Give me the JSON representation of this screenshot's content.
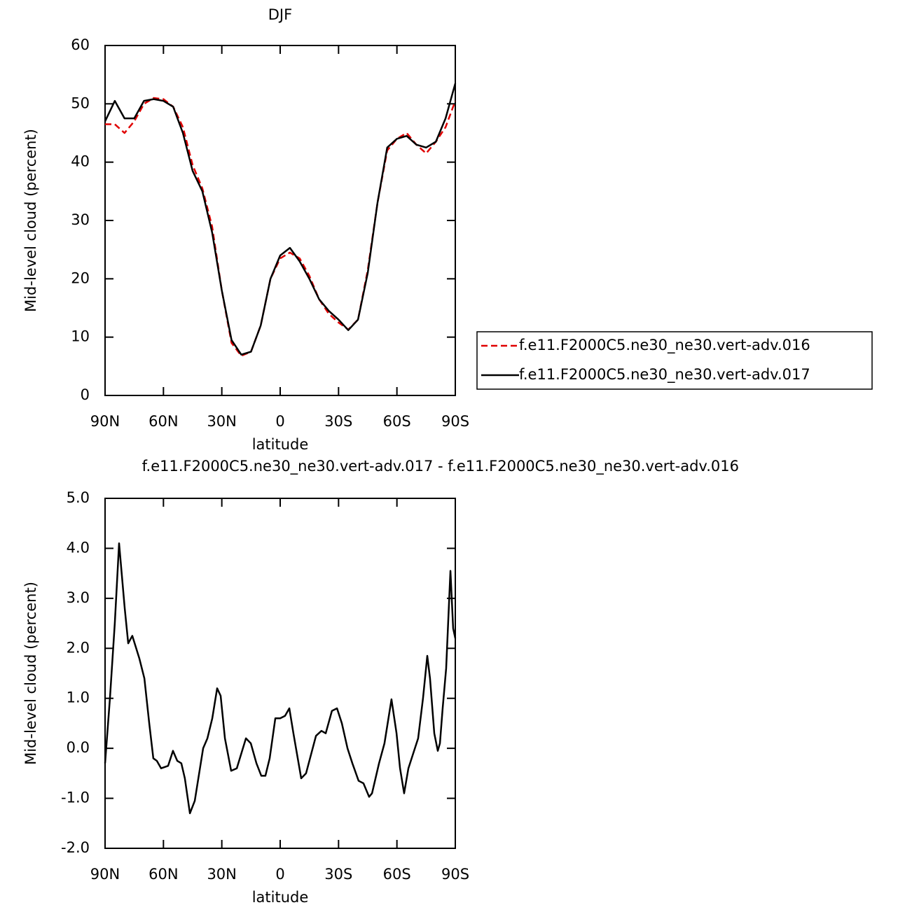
{
  "chart_data": [
    {
      "type": "line",
      "title": "DJF",
      "xlabel": "latitude",
      "ylabel": "Mid-level cloud (percent)",
      "xlim": [
        90,
        -90
      ],
      "ylim": [
        0,
        60
      ],
      "xticks": [
        {
          "value": 90,
          "label": "90N"
        },
        {
          "value": 60,
          "label": "60N"
        },
        {
          "value": 30,
          "label": "30N"
        },
        0,
        {
          "value": -30,
          "label": "30S"
        },
        {
          "value": -60,
          "label": "60S"
        },
        {
          "value": -90,
          "label": "90S"
        }
      ],
      "yticks": [
        0,
        10,
        20,
        30,
        40,
        50,
        60
      ],
      "x": [
        90,
        85,
        80,
        75,
        70,
        65,
        60,
        55,
        50,
        45,
        40,
        35,
        30,
        25,
        20,
        15,
        10,
        5,
        0,
        -5,
        -10,
        -15,
        -20,
        -25,
        -30,
        -35,
        -40,
        -45,
        -50,
        -55,
        -60,
        -65,
        -70,
        -75,
        -80,
        -85,
        -90
      ],
      "series": [
        {
          "name": "f.e11.F2000C5.ne30_ne30.vert-adv.016",
          "color": "#e00000",
          "dash": true,
          "values": [
            46.5,
            46.5,
            45,
            47,
            50,
            51,
            50.8,
            49.5,
            46,
            39.5,
            35.5,
            29,
            18,
            9,
            6.8,
            7.5,
            12,
            20,
            23.5,
            24.5,
            23.5,
            20.5,
            16.5,
            14,
            12.5,
            11.3,
            13,
            21.5,
            33,
            42,
            44,
            45,
            43,
            41.5,
            43.5,
            46,
            50.5
          ]
        },
        {
          "name": "f.e11.F2000C5.ne30_ne30.vert-adv.017",
          "color": "#000000",
          "dash": false,
          "values": [
            47,
            50.5,
            47.5,
            47.5,
            50.5,
            50.8,
            50.5,
            49.5,
            45,
            38.5,
            35,
            28,
            18,
            9.5,
            7,
            7.5,
            12,
            20,
            24,
            25.3,
            23,
            20,
            16.5,
            14.5,
            13,
            11.2,
            13,
            21,
            33,
            42.5,
            44,
            44.5,
            43,
            42.5,
            43.5,
            47.5,
            53.5
          ]
        }
      ]
    },
    {
      "type": "line",
      "title": "f.e11.F2000C5.ne30_ne30.vert-adv.017 - f.e11.F2000C5.ne30_ne30.vert-adv.016",
      "xlabel": "latitude",
      "ylabel": "Mid-level cloud (percent)",
      "xlim": [
        90,
        -90
      ],
      "ylim": [
        -2,
        5
      ],
      "xticks": [
        {
          "value": 90,
          "label": "90N"
        },
        {
          "value": 60,
          "label": "60N"
        },
        {
          "value": 30,
          "label": "30N"
        },
        0,
        {
          "value": -30,
          "label": "30S"
        },
        {
          "value": -60,
          "label": "60S"
        },
        {
          "value": -90,
          "label": "90S"
        }
      ],
      "yticks": [
        {
          "value": -2,
          "label": "-2.0"
        },
        {
          "value": -1,
          "label": "-1.0"
        },
        {
          "value": 0,
          "label": "0.0"
        },
        {
          "value": 1,
          "label": "1.0"
        },
        {
          "value": 2,
          "label": "2.0"
        },
        {
          "value": 3,
          "label": "3.0"
        },
        {
          "value": 4,
          "label": "4.0"
        },
        {
          "value": 5,
          "label": "5.0"
        }
      ],
      "x": [
        90,
        87.5,
        85,
        82.8,
        79.9,
        78.1,
        76,
        72.4,
        69.8,
        67.3,
        65.2,
        63.4,
        61.2,
        57.6,
        55.1,
        52.9,
        50.8,
        49,
        46.4,
        43.9,
        39.6,
        37.4,
        34.9,
        32.4,
        30.6,
        28.4,
        25.2,
        22.3,
        17.6,
        15.1,
        12.2,
        9.7,
        7.6,
        5.4,
        2.5,
        0,
        -2.5,
        -4.7,
        -6.8,
        -10.8,
        -13.3,
        -18.4,
        -21.2,
        -23.4,
        -26.6,
        -29.2,
        -31.7,
        -34.6,
        -37.1,
        -40.3,
        -42.8,
        -45.7,
        -47.2,
        -50.8,
        -53.6,
        -57.2,
        -59.8,
        -61.6,
        -63.7,
        -65.9,
        -68.4,
        -70.9,
        -73.4,
        -75.6,
        -77,
        -79.2,
        -81,
        -82.1,
        -83.5,
        -85.3,
        -87.5,
        -88.9,
        -90
      ],
      "series": [
        {
          "color": "#000000",
          "values": [
            -0.3,
            1.0,
            2.5,
            4.1,
            2.8,
            2.1,
            2.25,
            1.8,
            1.4,
            0.5,
            -0.2,
            -0.25,
            -0.4,
            -0.35,
            -0.05,
            -0.25,
            -0.3,
            -0.6,
            -1.3,
            -1.05,
            0.0,
            0.2,
            0.6,
            1.2,
            1.05,
            0.2,
            -0.45,
            -0.4,
            0.2,
            0.1,
            -0.3,
            -0.55,
            -0.55,
            -0.2,
            0.6,
            0.6,
            0.65,
            0.8,
            0.3,
            -0.6,
            -0.5,
            0.25,
            0.35,
            0.3,
            0.75,
            0.8,
            0.5,
            0.0,
            -0.3,
            -0.65,
            -0.7,
            -0.97,
            -0.9,
            -0.3,
            0.1,
            0.98,
            0.3,
            -0.4,
            -0.9,
            -0.4,
            -0.1,
            0.2,
            1.0,
            1.85,
            1.4,
            0.3,
            -0.05,
            0.1,
            0.8,
            1.6,
            3.55,
            2.4,
            2.2
          ]
        }
      ]
    }
  ]
}
